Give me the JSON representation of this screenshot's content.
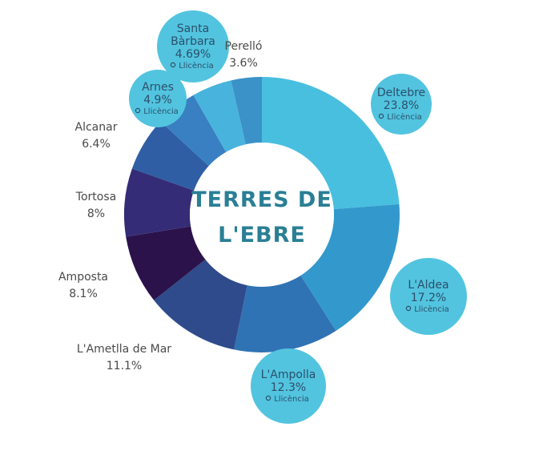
{
  "chart_data": {
    "type": "pie",
    "title": "TERRES DE L'EBRE",
    "title_lines": [
      "TERRES DE",
      "L'EBRE"
    ],
    "slices": [
      {
        "label": "Deltebre",
        "value": 23.8,
        "value_text": "23.8%",
        "color": "#49bfdf",
        "style": "bubble",
        "badge": "Llicència"
      },
      {
        "label": "L'Aldea",
        "value": 17.2,
        "value_text": "17.2%",
        "color": "#3399cc",
        "style": "bubble",
        "badge": "Llicència"
      },
      {
        "label": "L'Ampolla",
        "value": 12.3,
        "value_text": "12.3%",
        "color": "#2f73b4",
        "style": "bubble",
        "badge": "Llicència"
      },
      {
        "label": "L'Ametlla de Mar",
        "value": 11.1,
        "value_text": "11.1%",
        "color": "#2f4b8b",
        "style": "text"
      },
      {
        "label": "Amposta",
        "value": 8.1,
        "value_text": "8.1%",
        "color": "#2b124a",
        "style": "text"
      },
      {
        "label": "Tortosa",
        "value": 8,
        "value_text": "8%",
        "color": "#352c77",
        "style": "text"
      },
      {
        "label": "Alcanar",
        "value": 6.4,
        "value_text": "6.4%",
        "color": "#2f5ea4",
        "style": "text"
      },
      {
        "label": "Arnes",
        "value": 4.9,
        "value_text": "4.9%",
        "color": "#3880c2",
        "style": "bubble",
        "badge": "Llicència"
      },
      {
        "label": "Santa Bàrbara",
        "label_lines": [
          "Santa",
          "Bàrbara"
        ],
        "value": 4.69,
        "value_text": "4.69%",
        "color": "#48b3dc",
        "style": "bubble",
        "badge": "Llicència"
      },
      {
        "label": "Perelló",
        "value": 3.6,
        "value_text": "3.6%",
        "color": "#3a92c8",
        "style": "text"
      }
    ],
    "bubble_color": "#52c4df",
    "legend": "none"
  }
}
